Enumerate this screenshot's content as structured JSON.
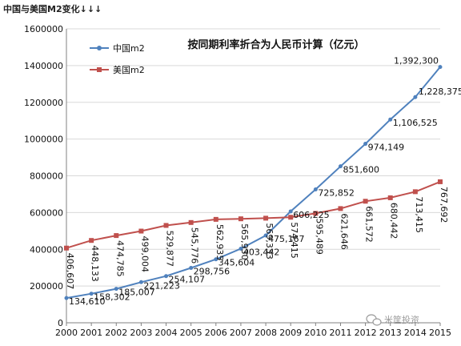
{
  "page_title": "中国与美国M2变化↓↓↓",
  "watermark": "米筐投资",
  "colors": {
    "china": "#4f81bd",
    "usa": "#c0504d",
    "grid": "#d9d9d9",
    "axis": "#808080"
  },
  "icons": {
    "watermark": "wechat-icon"
  },
  "chart_data": {
    "type": "line",
    "title": "",
    "subtitle": "按同期利率折合为人民币计算（亿元）",
    "xlabel": "",
    "ylabel": "",
    "x": [
      "2000",
      "2001",
      "2002",
      "2003",
      "2004",
      "2005",
      "2006",
      "2007",
      "2008",
      "2009",
      "2010",
      "2011",
      "2012",
      "2013",
      "2014",
      "2015"
    ],
    "ylim": [
      0,
      1600000
    ],
    "yticks": [
      "0",
      "200000",
      "400000",
      "600000",
      "800000",
      "1000000",
      "1200000",
      "1400000",
      "1600000"
    ],
    "grid": true,
    "legend": "top-left",
    "series": [
      {
        "name": "中国m2",
        "color": "#4f81bd",
        "values": [
          134610,
          158302,
          185007,
          221223,
          254107,
          298756,
          345604,
          403442,
          475167,
          606225,
          725852,
          851600,
          974149,
          1106525,
          1228375,
          1392300
        ],
        "labels": [
          "134,610",
          "158,302",
          "185,007",
          "221,223",
          "254,107",
          "298,756",
          "345,604",
          "403,442",
          "475,167",
          "606,225",
          "725,852",
          "851,600",
          "974,149",
          "1,106,525",
          "1,228,375",
          "1,392,300"
        ]
      },
      {
        "name": "美国m2",
        "color": "#c0504d",
        "values": [
          406607,
          448133,
          474785,
          499004,
          529877,
          545776,
          562935,
          565930,
          569333,
          574415,
          595489,
          621646,
          661572,
          680442,
          713415,
          767692
        ],
        "labels": [
          "406,607",
          "448,133",
          "474,785",
          "499,004",
          "529,877",
          "545,776",
          "562,935",
          "565,930",
          "569,333",
          "574,415",
          "595,489",
          "621,646",
          "661,572",
          "680,442",
          "713,415",
          "767,692"
        ]
      }
    ]
  }
}
